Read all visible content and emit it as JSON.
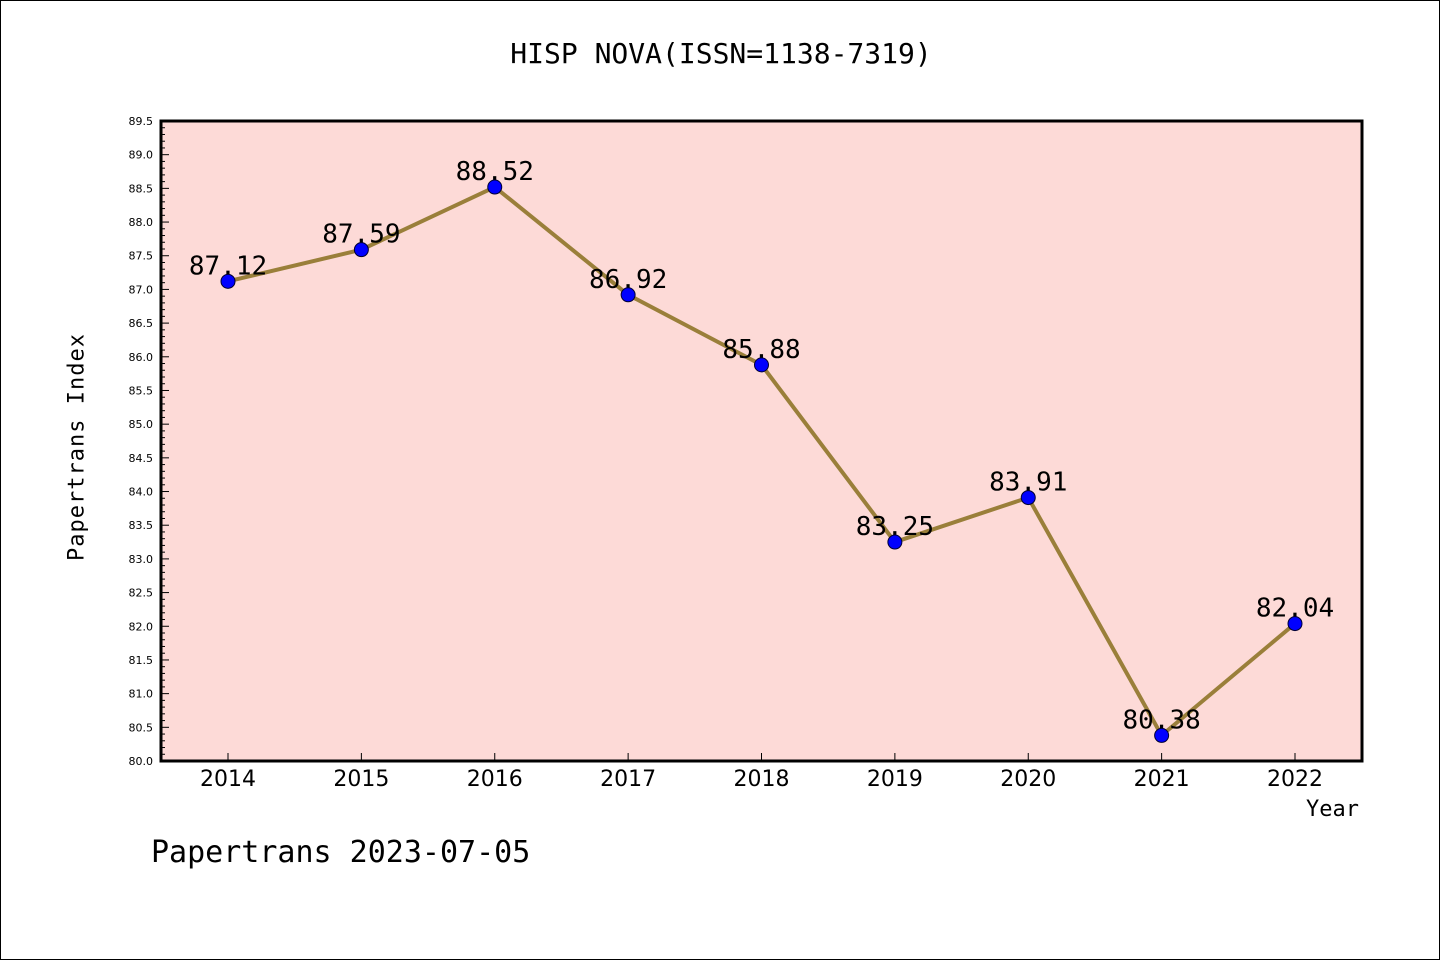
{
  "chart_data": {
    "type": "line",
    "title": "HISP NOVA(ISSN=1138-7319)",
    "xlabel": "Year",
    "ylabel": "Papertrans Index",
    "categories": [
      "2014",
      "2015",
      "2016",
      "2017",
      "2018",
      "2019",
      "2020",
      "2021",
      "2022"
    ],
    "series": [
      {
        "values": [
          87.12,
          87.59,
          88.52,
          86.92,
          85.88,
          83.25,
          83.91,
          80.38,
          82.04
        ]
      }
    ],
    "data_labels": [
      "87.12",
      "87.59",
      "88.52",
      "86.92",
      "85.88",
      "83.25",
      "83.91",
      "80.38",
      "82.04"
    ],
    "ylim": [
      80.0,
      89.5
    ],
    "yticks": [
      "80.0",
      "80.5",
      "81.0",
      "81.5",
      "82.0",
      "82.5",
      "83.0",
      "83.5",
      "84.0",
      "84.5",
      "85.0",
      "85.5",
      "86.0",
      "86.5",
      "87.0",
      "87.5",
      "88.0",
      "88.5",
      "89.0",
      "89.5"
    ],
    "grid": false,
    "colors": {
      "plot_background": "#fddad7",
      "line": "#9a7f3a",
      "marker": "#0000ff"
    }
  },
  "footer": "Papertrans 2023-07-05"
}
